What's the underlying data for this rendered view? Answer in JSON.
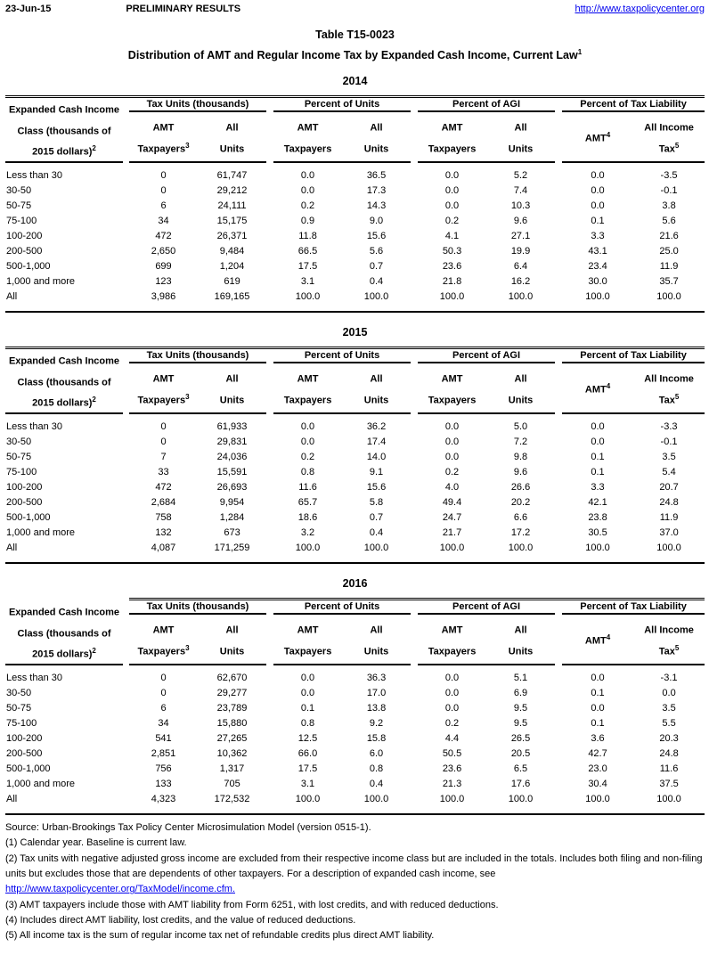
{
  "topbar": {
    "date": "23-Jun-15",
    "status": "PRELIMINARY RESULTS",
    "link": "http://www.taxpolicycenter.org"
  },
  "title": "Table T15-0023",
  "subtitle": {
    "text": "Distribution of AMT and Regular Income Tax by Expanded Cash Income, Current Law",
    "sup": "1"
  },
  "table_header": {
    "row_label": [
      {
        "t": "Expanded Cash Income",
        "s": ""
      },
      {
        "t": "Class (thousands of",
        "s": ""
      },
      {
        "t": "2015 dollars)",
        "s": "2"
      }
    ],
    "groups": [
      {
        "label": "Tax Units (thousands)",
        "sub": [
          {
            "l1": "AMT",
            "l1sup": "",
            "l2": "Taxpayers",
            "l2sup": "3"
          },
          {
            "l1": "All",
            "l1sup": "",
            "l2": "Units",
            "l2sup": ""
          }
        ]
      },
      {
        "label": "Percent of Units",
        "sub": [
          {
            "l1": "AMT",
            "l1sup": "",
            "l2": "Taxpayers",
            "l2sup": ""
          },
          {
            "l1": "All",
            "l1sup": "",
            "l2": "Units",
            "l2sup": ""
          }
        ]
      },
      {
        "label": "Percent of AGI",
        "sub": [
          {
            "l1": "AMT",
            "l1sup": "",
            "l2": "Taxpayers",
            "l2sup": ""
          },
          {
            "l1": "All",
            "l1sup": "",
            "l2": "Units",
            "l2sup": ""
          }
        ]
      },
      {
        "label": "Percent of Tax Liability",
        "sub": [
          {
            "l1": "AMT",
            "l1sup": "4",
            "l2": "",
            "l2sup": ""
          },
          {
            "l1": "All Income",
            "l1sup": "",
            "l2": "Tax",
            "l2sup": "5"
          }
        ]
      }
    ]
  },
  "sections": [
    {
      "year": "2014",
      "rows": [
        [
          "Less than 30",
          "0",
          "61,747",
          "0.0",
          "36.5",
          "0.0",
          "5.2",
          "0.0",
          "-3.5"
        ],
        [
          "30-50",
          "0",
          "29,212",
          "0.0",
          "17.3",
          "0.0",
          "7.4",
          "0.0",
          "-0.1"
        ],
        [
          "50-75",
          "6",
          "24,111",
          "0.2",
          "14.3",
          "0.0",
          "10.3",
          "0.0",
          "3.8"
        ],
        [
          "75-100",
          "34",
          "15,175",
          "0.9",
          "9.0",
          "0.2",
          "9.6",
          "0.1",
          "5.6"
        ],
        [
          "100-200",
          "472",
          "26,371",
          "11.8",
          "15.6",
          "4.1",
          "27.1",
          "3.3",
          "21.6"
        ],
        [
          "200-500",
          "2,650",
          "9,484",
          "66.5",
          "5.6",
          "50.3",
          "19.9",
          "43.1",
          "25.0"
        ],
        [
          "500-1,000",
          "699",
          "1,204",
          "17.5",
          "0.7",
          "23.6",
          "6.4",
          "23.4",
          "11.9"
        ],
        [
          "1,000 and more",
          "123",
          "619",
          "3.1",
          "0.4",
          "21.8",
          "16.2",
          "30.0",
          "35.7"
        ],
        [
          "All",
          "3,986",
          "169,165",
          "100.0",
          "100.0",
          "100.0",
          "100.0",
          "100.0",
          "100.0"
        ]
      ]
    },
    {
      "year": "2015",
      "rows": [
        [
          "Less than 30",
          "0",
          "61,933",
          "0.0",
          "36.2",
          "0.0",
          "5.0",
          "0.0",
          "-3.3"
        ],
        [
          "30-50",
          "0",
          "29,831",
          "0.0",
          "17.4",
          "0.0",
          "7.2",
          "0.0",
          "-0.1"
        ],
        [
          "50-75",
          "7",
          "24,036",
          "0.2",
          "14.0",
          "0.0",
          "9.8",
          "0.1",
          "3.5"
        ],
        [
          "75-100",
          "33",
          "15,591",
          "0.8",
          "9.1",
          "0.2",
          "9.6",
          "0.1",
          "5.4"
        ],
        [
          "100-200",
          "472",
          "26,693",
          "11.6",
          "15.6",
          "4.0",
          "26.6",
          "3.3",
          "20.7"
        ],
        [
          "200-500",
          "2,684",
          "9,954",
          "65.7",
          "5.8",
          "49.4",
          "20.2",
          "42.1",
          "24.8"
        ],
        [
          "500-1,000",
          "758",
          "1,284",
          "18.6",
          "0.7",
          "24.7",
          "6.6",
          "23.8",
          "11.9"
        ],
        [
          "1,000 and more",
          "132",
          "673",
          "3.2",
          "0.4",
          "21.7",
          "17.2",
          "30.5",
          "37.0"
        ],
        [
          "All",
          "4,087",
          "171,259",
          "100.0",
          "100.0",
          "100.0",
          "100.0",
          "100.0",
          "100.0"
        ]
      ]
    },
    {
      "year": "2016",
      "rows": [
        [
          "Less than 30",
          "0",
          "62,670",
          "0.0",
          "36.3",
          "0.0",
          "5.1",
          "0.0",
          "-3.1"
        ],
        [
          "30-50",
          "0",
          "29,277",
          "0.0",
          "17.0",
          "0.0",
          "6.9",
          "0.1",
          "0.0"
        ],
        [
          "50-75",
          "6",
          "23,789",
          "0.1",
          "13.8",
          "0.0",
          "9.5",
          "0.0",
          "3.5"
        ],
        [
          "75-100",
          "34",
          "15,880",
          "0.8",
          "9.2",
          "0.2",
          "9.5",
          "0.1",
          "5.5"
        ],
        [
          "100-200",
          "541",
          "27,265",
          "12.5",
          "15.8",
          "4.4",
          "26.5",
          "3.6",
          "20.3"
        ],
        [
          "200-500",
          "2,851",
          "10,362",
          "66.0",
          "6.0",
          "50.5",
          "20.5",
          "42.7",
          "24.8"
        ],
        [
          "500-1,000",
          "756",
          "1,317",
          "17.5",
          "0.8",
          "23.6",
          "6.5",
          "23.0",
          "11.6"
        ],
        [
          "1,000 and more",
          "133",
          "705",
          "3.1",
          "0.4",
          "21.3",
          "17.6",
          "30.4",
          "37.5"
        ],
        [
          "All",
          "4,323",
          "172,532",
          "100.0",
          "100.0",
          "100.0",
          "100.0",
          "100.0",
          "100.0"
        ]
      ]
    }
  ],
  "notes": [
    {
      "text": "Source: Urban-Brookings Tax Policy Center Microsimulation Model (version 0515-1).",
      "link": false
    },
    {
      "text": "(1) Calendar year. Baseline is current law.",
      "link": false
    },
    {
      "text": "(2) Tax units with negative adjusted gross income are excluded from their respective income class but are included in the totals. Includes both filing and non-filing units but excludes those that are dependents of other taxpayers. For a description of expanded cash income, see",
      "link": false
    },
    {
      "text": "http://www.taxpolicycenter.org/TaxModel/income.cfm.",
      "link": true
    },
    {
      "text": "(3) AMT taxpayers include those with AMT liability from Form 6251, with lost credits, and with reduced deductions.",
      "link": false
    },
    {
      "text": "(4) Includes direct AMT liability, lost credits, and the value of reduced deductions.",
      "link": false
    },
    {
      "text": "(5) All income tax is the sum of regular income tax net of refundable credits plus direct AMT liability.",
      "link": false
    }
  ]
}
